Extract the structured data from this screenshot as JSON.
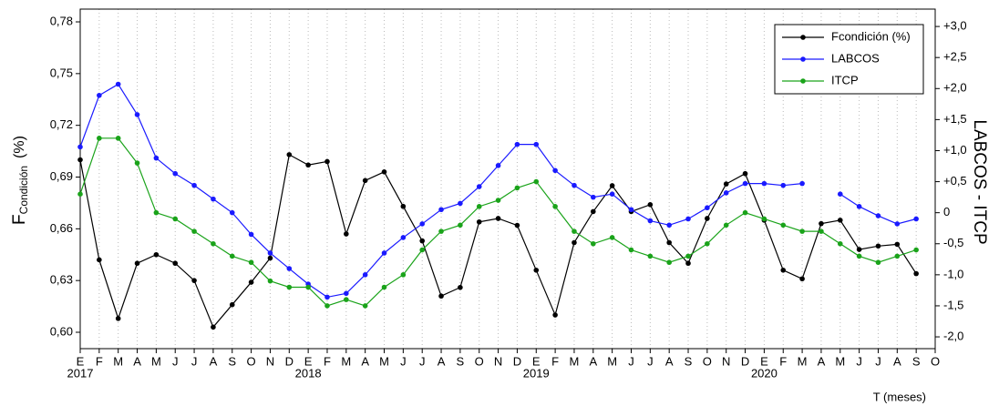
{
  "chart_data": {
    "type": "line",
    "y_label": "F",
    "y_label_sub": "Condición",
    "y_label_unit": "(%)",
    "y2_label": "LABCOS - ITCP",
    "x_label": "T (meses)",
    "categories": [
      "E",
      "F",
      "M",
      "A",
      "M",
      "J",
      "J",
      "A",
      "S",
      "O",
      "N",
      "D",
      "E",
      "F",
      "M",
      "A",
      "M",
      "J",
      "J",
      "A",
      "S",
      "O",
      "N",
      "D",
      "E",
      "F",
      "M",
      "A",
      "M",
      "J",
      "J",
      "A",
      "S",
      "O",
      "N",
      "D",
      "E",
      "F",
      "M",
      "A",
      "M",
      "J",
      "J",
      "A",
      "S",
      "O"
    ],
    "year_labels": [
      "2017",
      null,
      null,
      null,
      null,
      null,
      null,
      null,
      null,
      null,
      null,
      null,
      "2018",
      null,
      null,
      null,
      null,
      null,
      null,
      null,
      null,
      null,
      null,
      null,
      "2019",
      null,
      null,
      null,
      null,
      null,
      null,
      null,
      null,
      null,
      null,
      null,
      "2020",
      null,
      null,
      null,
      null,
      null,
      null,
      null,
      null,
      null
    ],
    "ylim": [
      0.5905,
      0.7874
    ],
    "yticks": [
      {
        "value": 0.6,
        "label": "0,60"
      },
      {
        "value": 0.63,
        "label": "0,63"
      },
      {
        "value": 0.66,
        "label": "0,66"
      },
      {
        "value": 0.69,
        "label": "0,69"
      },
      {
        "value": 0.72,
        "label": "0,72"
      },
      {
        "value": 0.75,
        "label": "0,75"
      },
      {
        "value": 0.78,
        "label": "0,78"
      }
    ],
    "y2lim": [
      -2.19,
      3.28
    ],
    "y2ticks": [
      {
        "value": -2.0,
        "label": "-2,0"
      },
      {
        "value": -1.5,
        "label": "-1,5"
      },
      {
        "value": -1.0,
        "label": "-1,0"
      },
      {
        "value": -0.5,
        "label": "-0,5"
      },
      {
        "value": 0,
        "label": "0"
      },
      {
        "value": 0.5,
        "label": "+0,5"
      },
      {
        "value": 1.0,
        "label": "+1,0"
      },
      {
        "value": 1.5,
        "label": "+1,5"
      },
      {
        "value": 2.0,
        "label": "+2,0"
      },
      {
        "value": 2.5,
        "label": "+2,5"
      },
      {
        "value": 3.0,
        "label": "+3,0"
      }
    ],
    "grid": "x",
    "legend": "upper right",
    "series": [
      {
        "name": "Fcondición (%)",
        "color": "#000000",
        "values": [
          0.7,
          0.642,
          0.608,
          0.64,
          0.645,
          0.64,
          0.63,
          0.603,
          0.616,
          0.629,
          0.643,
          0.703,
          0.697,
          0.699,
          0.657,
          0.688,
          0.693,
          0.673,
          0.653,
          0.621,
          0.626,
          0.664,
          0.666,
          0.662,
          0.636,
          0.61,
          0.652,
          0.67,
          0.685,
          0.67,
          0.674,
          0.652,
          0.64,
          0.666,
          0.686,
          0.692,
          0.665,
          0.636,
          0.631,
          0.663,
          0.665,
          0.648,
          0.65,
          0.651,
          0.634,
          null
        ]
      },
      {
        "name": "LABCOS",
        "color": "#1a1aff",
        "axis": "y2",
        "values": [
          1.06,
          1.89,
          2.07,
          1.58,
          0.88,
          0.63,
          0.44,
          0.22,
          0.0,
          -0.35,
          -0.65,
          -0.9,
          -1.15,
          -1.36,
          -1.3,
          -1.0,
          -0.65,
          -0.4,
          -0.18,
          0.05,
          0.15,
          0.42,
          0.76,
          1.1,
          1.1,
          0.68,
          0.44,
          0.25,
          0.3,
          0.05,
          -0.13,
          -0.2,
          -0.1,
          0.08,
          0.32,
          0.47,
          0.47,
          0.44,
          0.47,
          null,
          0.3,
          0.1,
          -0.05,
          -0.18,
          -0.1,
          null
        ]
      },
      {
        "name": "ITCP",
        "color": "#1aa31a",
        "axis": "y2",
        "values": [
          0.3,
          1.2,
          1.2,
          0.8,
          0.0,
          -0.1,
          -0.3,
          -0.5,
          -0.7,
          -0.8,
          -1.1,
          -1.2,
          -1.2,
          -1.5,
          -1.4,
          -1.5,
          -1.2,
          -1.0,
          -0.6,
          -0.3,
          -0.2,
          0.1,
          0.2,
          0.4,
          0.5,
          0.1,
          -0.3,
          -0.5,
          -0.4,
          -0.6,
          -0.7,
          -0.8,
          -0.7,
          -0.5,
          -0.2,
          0.0,
          -0.1,
          -0.2,
          -0.3,
          -0.3,
          -0.5,
          -0.7,
          -0.8,
          -0.7,
          -0.6,
          null
        ]
      }
    ]
  }
}
